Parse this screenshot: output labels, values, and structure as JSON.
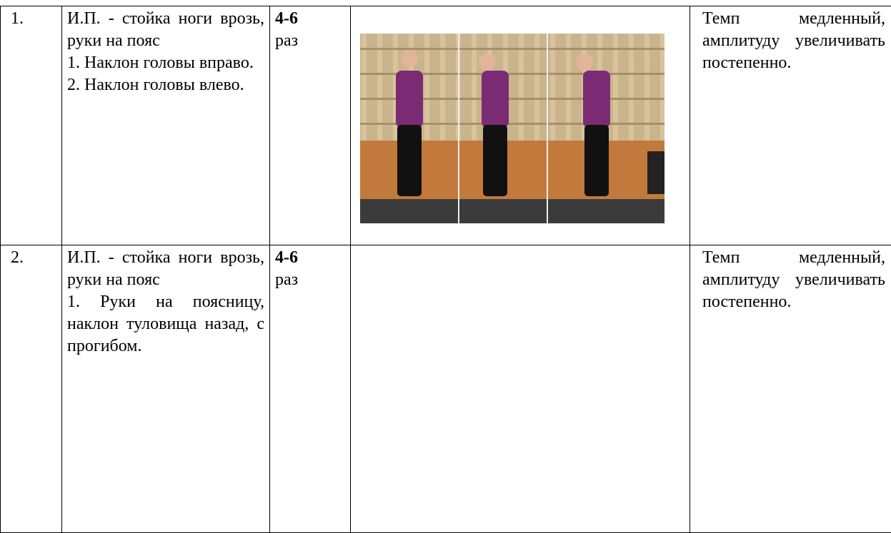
{
  "table": {
    "rows": [
      {
        "number": "1.",
        "description": [
          "И.П. - стойка ноги врозь, руки на пояс",
          "1. Наклон головы вправо.",
          "2. Наклон головы влево."
        ],
        "count": "4-6",
        "unit": "раз",
        "note": "Темп медленный, амплитуду увеличивать постепенно."
      },
      {
        "number": "2.",
        "description": [
          "И.П. - стойка ноги врозь, руки на пояс",
          "1. Руки на поясницу, наклон туловища назад, с прогибом."
        ],
        "count": "4-6",
        "unit": "раз",
        "note": "Темп медленный, амплитуду увеличивать постепенно."
      }
    ]
  }
}
